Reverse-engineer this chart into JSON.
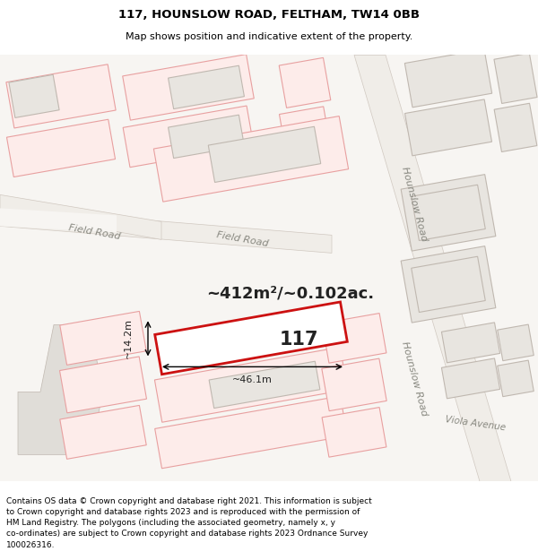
{
  "title": "117, HOUNSLOW ROAD, FELTHAM, TW14 0BB",
  "subtitle": "Map shows position and indicative extent of the property.",
  "footer": "Contains OS data © Crown copyright and database right 2021. This information is subject\nto Crown copyright and database rights 2023 and is reproduced with the permission of\nHM Land Registry. The polygons (including the associated geometry, namely x, y\nco-ordinates) are subject to Crown copyright and database rights 2023 Ordnance Survey\n100026316.",
  "bg_color": "#f7f5f2",
  "building_fill": "#e8e5e0",
  "building_stroke": "#c0b8b0",
  "highlight_fill": "#fdecea",
  "highlight_stroke": "#e8a0a0",
  "main_fill": "#ffffff",
  "main_stroke": "#cc1111",
  "road_fill": "#f0ede8",
  "road_stroke": "#d0c8c0",
  "area_text": "~412m²/~0.102ac.",
  "label_117": "117",
  "dim_width": "~46.1m",
  "dim_height": "~14.2m",
  "field_road": "Field Road",
  "hounslow_road": "Hounslow Road",
  "viola_avenue": "Viola Avenue",
  "title_fontsize": 9.5,
  "subtitle_fontsize": 8.0,
  "footer_fontsize": 6.5
}
